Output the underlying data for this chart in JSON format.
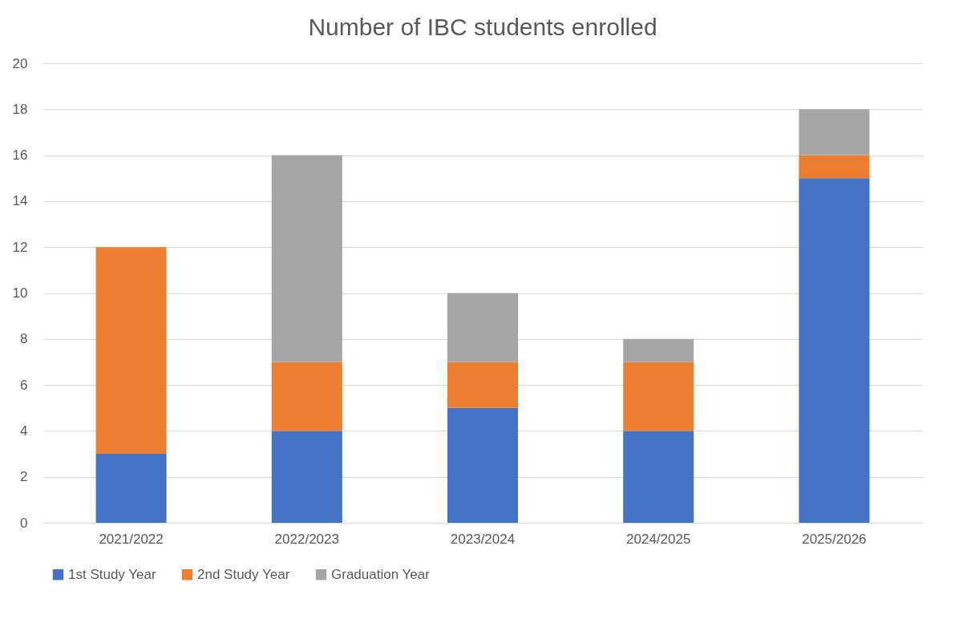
{
  "chart_data": {
    "type": "bar",
    "title": "Number of IBC students enrolled",
    "stacked": true,
    "categories": [
      "2021/2022",
      "2022/2023",
      "2023/2024",
      "2024/2025",
      "2025/2026"
    ],
    "series": [
      {
        "name": "1st Study Year",
        "color": "#4472c4",
        "values": [
          3,
          4,
          5,
          4,
          15
        ]
      },
      {
        "name": "2nd Study Year",
        "color": "#ed7d31",
        "values": [
          9,
          3,
          2,
          3,
          1
        ]
      },
      {
        "name": "Graduation Year",
        "color": "#a5a5a5",
        "values": [
          0,
          9,
          3,
          1,
          2
        ]
      }
    ],
    "ylim": [
      0,
      20
    ],
    "yticks": [
      0,
      2,
      4,
      6,
      8,
      10,
      12,
      14,
      16,
      18,
      20
    ],
    "grid": "y",
    "legend": "bottom"
  }
}
